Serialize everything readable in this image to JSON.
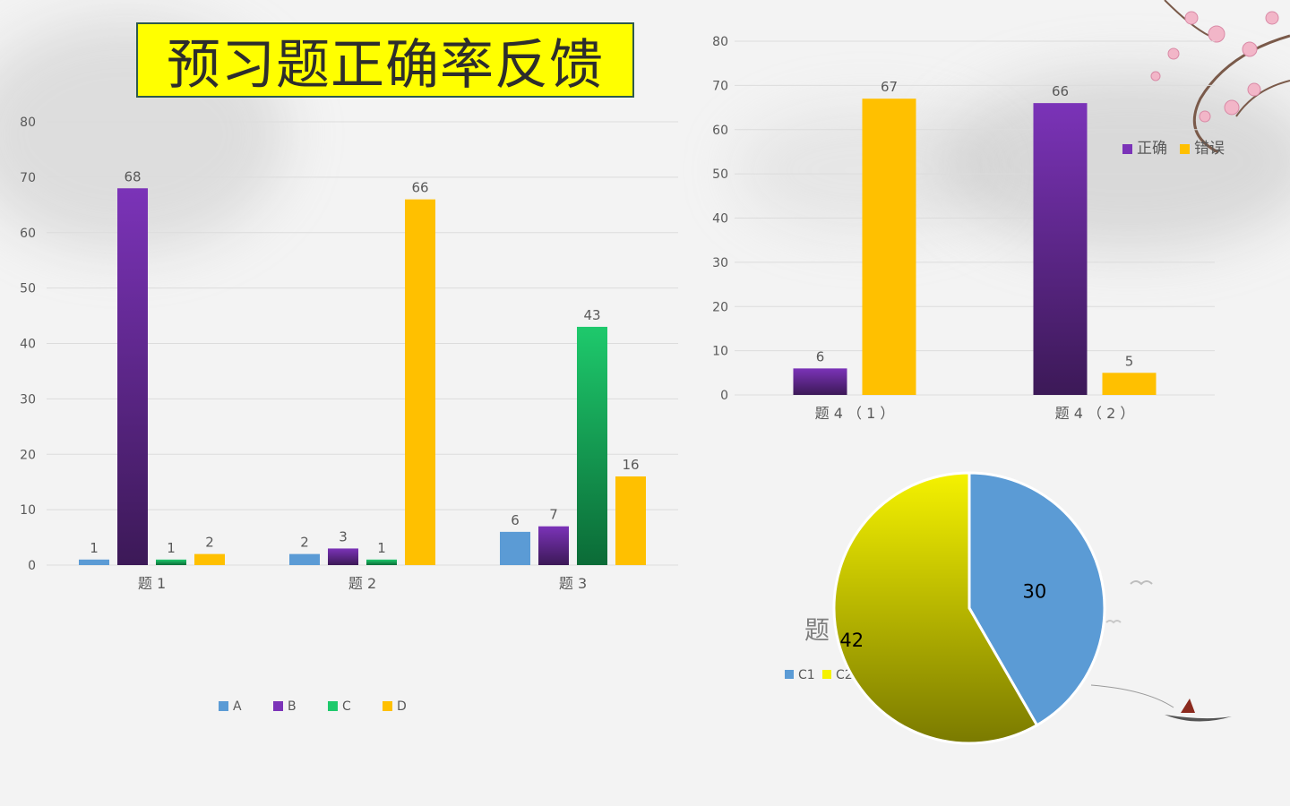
{
  "title": "预习题正确率反馈",
  "colors": {
    "A": "#5b9bd5",
    "B_top": "#7b33b8",
    "B_bottom": "#3c1957",
    "C_top": "#1ec96c",
    "C_bottom": "#0b6b37",
    "D": "#ffc000",
    "pie_C1": "#5b9bd5",
    "pie_C2_top": "#f5f200",
    "pie_C2_bottom": "#7a7a00",
    "grid": "#dcdcdc",
    "axis_text": "#595959"
  },
  "chart_data": [
    {
      "type": "bar",
      "categories": [
        "题  1",
        "题  2",
        "题 3"
      ],
      "series": [
        {
          "name": "A",
          "values": [
            1,
            2,
            6
          ]
        },
        {
          "name": "B",
          "values": [
            68,
            3,
            7
          ]
        },
        {
          "name": "C",
          "values": [
            1,
            1,
            43
          ]
        },
        {
          "name": "D",
          "values": [
            2,
            66,
            16
          ]
        }
      ],
      "ylim": [
        0,
        80
      ],
      "yticks": [
        "0",
        "10",
        "20",
        "30",
        "40",
        "50",
        "60",
        "70",
        "80"
      ],
      "grid": true,
      "legend": "bottom"
    },
    {
      "type": "bar",
      "categories": [
        "题 4 （ 1 ）",
        "题 4 （ 2 ）"
      ],
      "series": [
        {
          "name": "正确",
          "values": [
            6,
            66
          ]
        },
        {
          "name": "错误",
          "values": [
            67,
            5
          ]
        }
      ],
      "ylim": [
        0,
        80
      ],
      "yticks": [
        "0",
        "10",
        "20",
        "30",
        "40",
        "50",
        "60",
        "70",
        "80"
      ],
      "grid": true,
      "legend": "top-right"
    },
    {
      "type": "pie",
      "title": "题 5",
      "labels": [
        "C1",
        "C2"
      ],
      "values": [
        30,
        42
      ],
      "legend": "bottom-left"
    }
  ]
}
